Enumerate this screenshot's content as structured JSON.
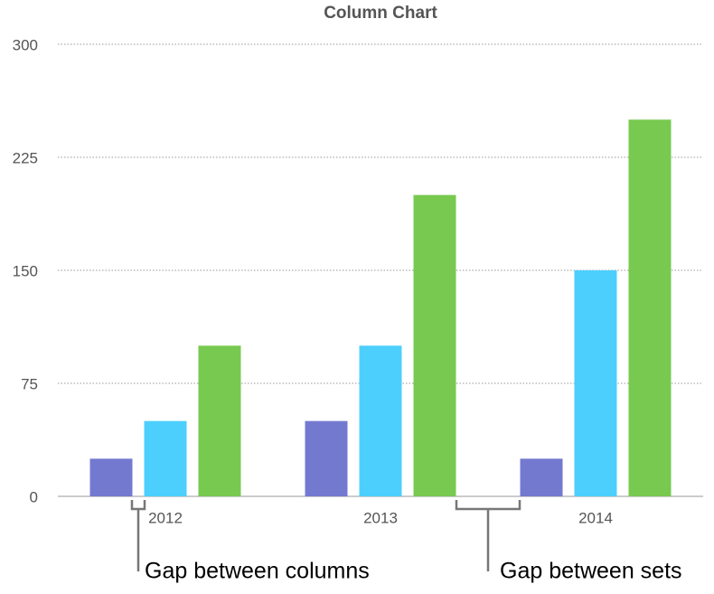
{
  "chart_data": {
    "type": "bar",
    "title": "Column Chart",
    "categories": [
      "2012",
      "2013",
      "2014"
    ],
    "series": [
      {
        "color": "#7479d0",
        "values": [
          25,
          50,
          25
        ]
      },
      {
        "color": "#4ccffd",
        "values": [
          50,
          100,
          150
        ]
      },
      {
        "color": "#78c950",
        "values": [
          100,
          200,
          250
        ]
      }
    ],
    "ylim": [
      0,
      300
    ],
    "yticks": [
      0,
      75,
      150,
      225,
      300
    ],
    "grid": true,
    "annotations": [
      "Gap between columns",
      "Gap between sets"
    ]
  }
}
